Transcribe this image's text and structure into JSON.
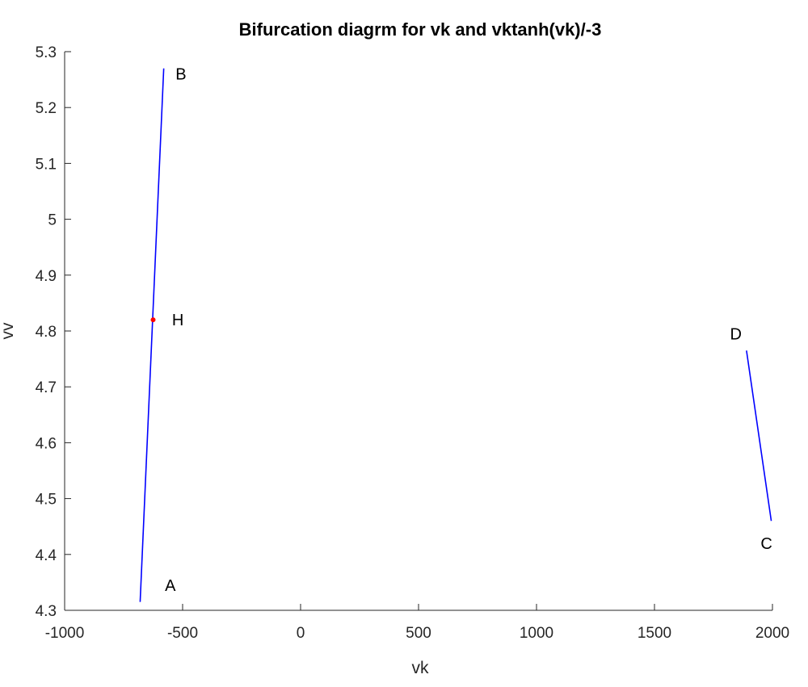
{
  "chart_data": {
    "type": "line",
    "title": "Bifurcation diagrm for vk and vktanh(vk)/-3",
    "xlabel": "vk",
    "ylabel": "vv",
    "xlim": [
      -1000,
      2000
    ],
    "ylim": [
      4.3,
      5.3
    ],
    "x_ticks": [
      "-1000",
      "-500",
      "0",
      "500",
      "1000",
      "1500",
      "2000"
    ],
    "y_ticks": [
      "4.3",
      "4.4",
      "4.5",
      "4.6",
      "4.7",
      "4.8",
      "4.9",
      "5",
      "5.1",
      "5.2",
      "5.3"
    ],
    "grid": false,
    "series": [
      {
        "color": "#0000ff",
        "points": [
          [
            -680,
            4.315
          ],
          [
            -580,
            5.27
          ]
        ]
      },
      {
        "color": "#0000ff",
        "points": [
          [
            1890,
            4.765
          ],
          [
            1995,
            4.46
          ]
        ]
      }
    ],
    "markers": [
      {
        "x": -625,
        "y": 4.82,
        "color": "#ff0000"
      }
    ],
    "annotations": [
      {
        "text": "B",
        "x": -530,
        "y": 5.26
      },
      {
        "text": "H",
        "x": -545,
        "y": 4.82
      },
      {
        "text": "A",
        "x": -575,
        "y": 4.345
      },
      {
        "text": "D",
        "x": 1820,
        "y": 4.795
      },
      {
        "text": "C",
        "x": 1950,
        "y": 4.42
      }
    ]
  }
}
